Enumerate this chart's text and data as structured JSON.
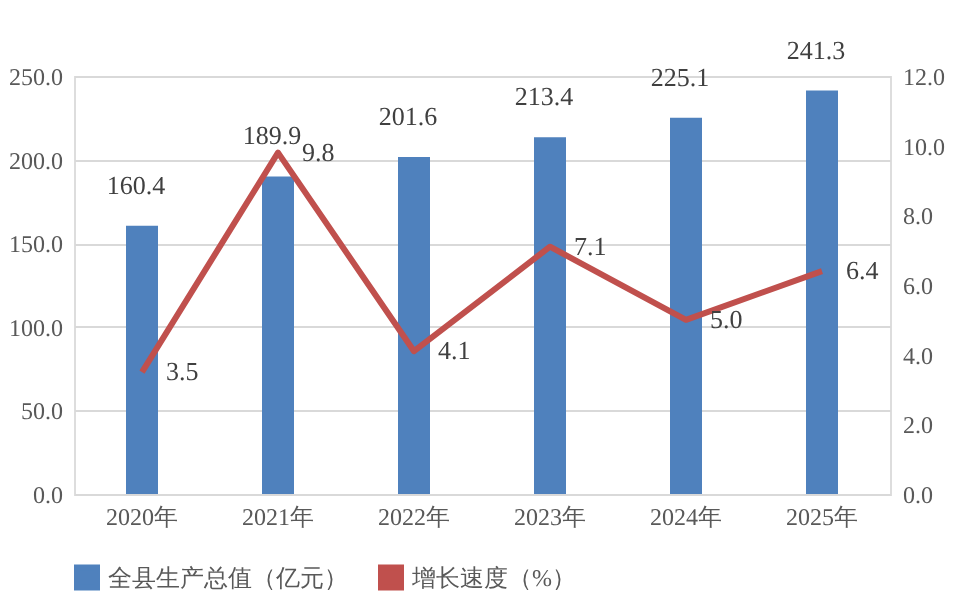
{
  "chart_data": {
    "type": "bar",
    "categories": [
      "2020年",
      "2021年",
      "2022年",
      "2023年",
      "2024年",
      "2025年"
    ],
    "series": [
      {
        "name": "全县生产总值（亿元）",
        "color": "#4f81bd",
        "values": [
          160.4,
          189.9,
          201.6,
          213.4,
          225.1,
          241.3
        ],
        "value_labels": [
          "160.4",
          "189.9",
          "201.6",
          "213.4",
          "225.1",
          "241.3"
        ]
      },
      {
        "name": "增长速度（%）",
        "type": "line",
        "axis": "y2",
        "color": "#c0504d",
        "values": [
          3.5,
          9.8,
          4.1,
          7.1,
          5.0,
          6.4
        ],
        "value_labels": [
          "3.5",
          "9.8",
          "4.1",
          "7.1",
          "5.0",
          "6.4"
        ]
      }
    ],
    "ylim": [
      0,
      250
    ],
    "yticks": [
      {
        "value": 0,
        "label": "0.0"
      },
      {
        "value": 50,
        "label": "50.0"
      },
      {
        "value": 100,
        "label": "100.0"
      },
      {
        "value": 150,
        "label": "150.0"
      },
      {
        "value": 200,
        "label": "200.0"
      },
      {
        "value": 250,
        "label": "250.0"
      }
    ],
    "y2lim": [
      0,
      12
    ],
    "y2ticks": [
      {
        "value": 0,
        "label": "0.0"
      },
      {
        "value": 2,
        "label": "2.0"
      },
      {
        "value": 4,
        "label": "4.0"
      },
      {
        "value": 6,
        "label": "6.0"
      },
      {
        "value": 8,
        "label": "8.0"
      },
      {
        "value": 10,
        "label": "10.0"
      },
      {
        "value": 12,
        "label": "12.0"
      }
    ],
    "grid": "y",
    "legend": "bottom",
    "marker": "none",
    "line_style": "solid"
  }
}
